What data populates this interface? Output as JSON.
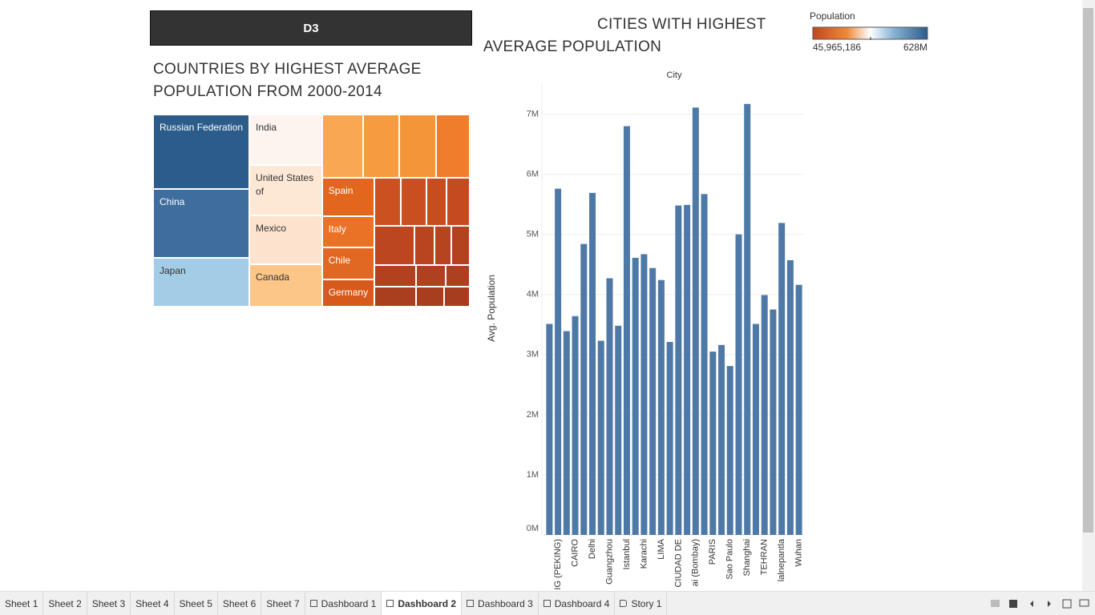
{
  "header": {
    "title": "D3"
  },
  "chart_data": [
    {
      "type": "treemap",
      "title": "COUNTRIES BY HIGHEST AVERAGE POPULATION FROM 2000-2014",
      "nodes": [
        {
          "name": "Russian Federation",
          "value": 111,
          "color": "#2c5d8a"
        },
        {
          "name": "China",
          "value": 102,
          "color": "#3f6d9d"
        },
        {
          "name": "Japan",
          "value": 73,
          "color": "#a3cce6"
        },
        {
          "name": "India",
          "value": 57,
          "color": "#fdf4ef"
        },
        {
          "name": "United States of",
          "value": 56,
          "color": "#fde7d5"
        },
        {
          "name": "Mexico",
          "value": 55,
          "color": "#fde3cd"
        },
        {
          "name": "Canada",
          "value": 48,
          "color": "#fcc689"
        },
        {
          "name": "Spain",
          "value": 31,
          "color": "#e2661e"
        },
        {
          "name": "Italy",
          "value": 25,
          "color": "#ea7226"
        },
        {
          "name": "Chile",
          "value": 26,
          "color": "#e06822"
        },
        {
          "name": "Germany",
          "value": 22,
          "color": "#d65a1c"
        },
        {
          "name": null,
          "value": 40,
          "color": "#f9a753"
        },
        {
          "name": null,
          "value": 36,
          "color": "#f69b40"
        },
        {
          "name": null,
          "value": 36,
          "color": "#f5953a"
        },
        {
          "name": null,
          "value": 33,
          "color": "#ef7d2c"
        },
        {
          "name": null,
          "value": 20,
          "color": "#cc5120"
        },
        {
          "name": null,
          "value": 19,
          "color": "#c94f20"
        },
        {
          "name": null,
          "value": 15,
          "color": "#c64d20"
        },
        {
          "name": null,
          "value": 17,
          "color": "#c44b20"
        },
        {
          "name": null,
          "value": 24,
          "color": "#bb4620"
        },
        {
          "name": null,
          "value": 12,
          "color": "#b8451f"
        },
        {
          "name": null,
          "value": 10,
          "color": "#b5441f"
        },
        {
          "name": null,
          "value": 11,
          "color": "#b3431f"
        },
        {
          "name": null,
          "value": 14,
          "color": "#b1421f"
        },
        {
          "name": null,
          "value": 10,
          "color": "#ae411f"
        },
        {
          "name": null,
          "value": 8,
          "color": "#ac401f"
        },
        {
          "name": null,
          "value": 13,
          "color": "#aa3f1f"
        },
        {
          "name": null,
          "value": 9,
          "color": "#a83e1f"
        },
        {
          "name": null,
          "value": 8,
          "color": "#a63d1f"
        }
      ],
      "color_legend": {
        "title": "Population",
        "range": [
          {
            "value": 45965186,
            "label": "45,965,186"
          },
          {
            "value": 628000000,
            "label": "628M"
          }
        ]
      }
    },
    {
      "type": "bar",
      "title": "CITIES WITH HIGHEST AVERAGE POPULATION",
      "x_label": "City",
      "y_label": "Avg. Population",
      "color": "#4e79a7",
      "categories": [
        null,
        "IG (PEKING)",
        null,
        "CAIRO",
        null,
        "Delhi",
        null,
        "Guangzhou",
        null,
        "Istanbul",
        null,
        "Karachi",
        null,
        "LIMA",
        null,
        "CIUDAD DE",
        null,
        "ai (Bombay)",
        null,
        "PARIS",
        null,
        "Sao Paulo",
        null,
        "Shanghai",
        null,
        "TEHRAN",
        null,
        "lalnepantla",
        null,
        "Wuhan"
      ],
      "values": [
        3510000,
        5760000,
        3390000,
        3640000,
        4840000,
        5690000,
        3230000,
        4270000,
        3480000,
        6800000,
        4610000,
        4670000,
        4440000,
        4240000,
        3210000,
        5480000,
        5490000,
        7110000,
        5670000,
        3050000,
        3160000,
        2810000,
        5000000,
        7170000,
        3510000,
        3990000,
        3750000,
        5190000,
        4570000,
        4160000
      ],
      "ylim": [
        0,
        7500000
      ],
      "yticks": [
        {
          "value": 0,
          "label": "0M"
        },
        {
          "value": 1000000,
          "label": "1M"
        },
        {
          "value": 2000000,
          "label": "2M"
        },
        {
          "value": 3000000,
          "label": "3M"
        },
        {
          "value": 4000000,
          "label": "4M"
        },
        {
          "value": 5000000,
          "label": "5M"
        },
        {
          "value": 6000000,
          "label": "6M"
        },
        {
          "value": 7000000,
          "label": "7M"
        }
      ],
      "grid": true
    }
  ],
  "tabs": [
    {
      "label": "Sheet 1",
      "icon": "none"
    },
    {
      "label": "Sheet 2",
      "icon": "none"
    },
    {
      "label": "Sheet 3",
      "icon": "none"
    },
    {
      "label": "Sheet 4",
      "icon": "none"
    },
    {
      "label": "Sheet 5",
      "icon": "none"
    },
    {
      "label": "Sheet 6",
      "icon": "none"
    },
    {
      "label": "Sheet 7",
      "icon": "none"
    },
    {
      "label": "Dashboard 1",
      "icon": "dashboard"
    },
    {
      "label": "Dashboard 2",
      "icon": "dashboard",
      "active": true
    },
    {
      "label": "Dashboard 3",
      "icon": "dashboard"
    },
    {
      "label": "Dashboard 4",
      "icon": "dashboard"
    },
    {
      "label": "Story 1",
      "icon": "story"
    }
  ]
}
